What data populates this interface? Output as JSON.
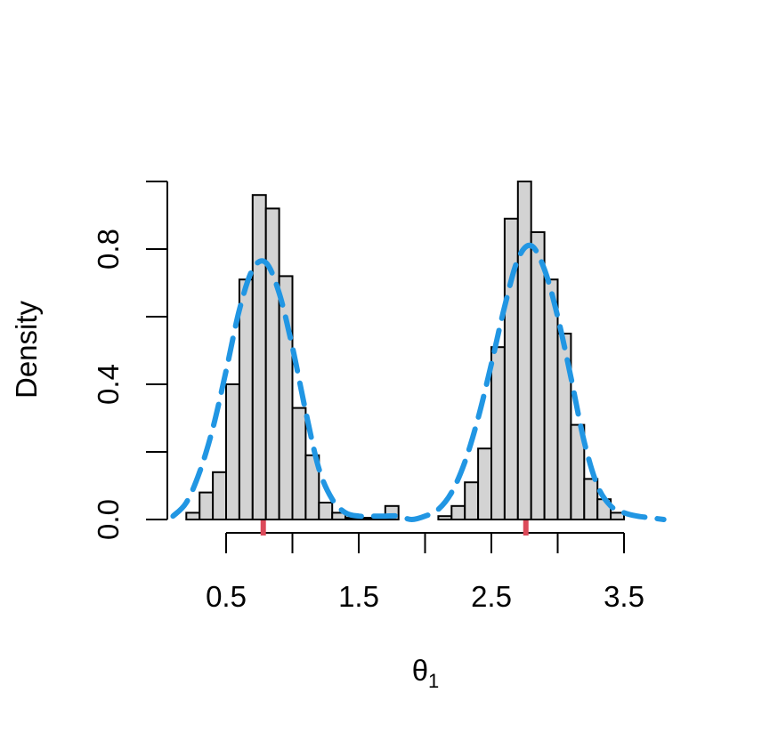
{
  "chart_data": {
    "type": "bar",
    "xlabel": "θ",
    "xlabel_subscript": "1",
    "ylabel": "Density",
    "xlim": [
      0.05,
      3.8
    ],
    "ylim": [
      0,
      1.0
    ],
    "x_ticks": [
      0.5,
      1.0,
      1.5,
      2.0,
      2.5,
      3.0,
      3.5
    ],
    "x_tick_labels": [
      {
        "value": 0.5,
        "label": "0.5"
      },
      {
        "value": 1.5,
        "label": "1.5"
      },
      {
        "value": 2.5,
        "label": "2.5"
      },
      {
        "value": 3.5,
        "label": "3.5"
      }
    ],
    "y_ticks": [
      0,
      0.2,
      0.4,
      0.6,
      0.8,
      1.0
    ],
    "y_tick_labels": [
      {
        "value": 0.0,
        "label": "0.0"
      },
      {
        "value": 0.4,
        "label": "0.4"
      },
      {
        "value": 0.8,
        "label": "0.8"
      }
    ],
    "bin_width": 0.1,
    "bins": [
      {
        "x0": 0.2,
        "value": 0.02
      },
      {
        "x0": 0.3,
        "value": 0.08
      },
      {
        "x0": 0.4,
        "value": 0.14
      },
      {
        "x0": 0.5,
        "value": 0.4
      },
      {
        "x0": 0.6,
        "value": 0.71
      },
      {
        "x0": 0.7,
        "value": 0.96
      },
      {
        "x0": 0.8,
        "value": 0.92
      },
      {
        "x0": 0.9,
        "value": 0.72
      },
      {
        "x0": 1.0,
        "value": 0.33
      },
      {
        "x0": 1.1,
        "value": 0.19
      },
      {
        "x0": 1.2,
        "value": 0.05
      },
      {
        "x0": 1.3,
        "value": 0.02
      },
      {
        "x0": 1.4,
        "value": 0.005
      },
      {
        "x0": 1.5,
        "value": 0.005
      },
      {
        "x0": 1.6,
        "value": 0.005
      },
      {
        "x0": 1.7,
        "value": 0.04
      },
      {
        "x0": 2.1,
        "value": 0.01
      },
      {
        "x0": 2.2,
        "value": 0.04
      },
      {
        "x0": 2.3,
        "value": 0.11
      },
      {
        "x0": 2.4,
        "value": 0.21
      },
      {
        "x0": 2.5,
        "value": 0.51
      },
      {
        "x0": 2.6,
        "value": 0.89
      },
      {
        "x0": 2.7,
        "value": 1.0
      },
      {
        "x0": 2.8,
        "value": 0.85
      },
      {
        "x0": 2.9,
        "value": 0.71
      },
      {
        "x0": 3.0,
        "value": 0.55
      },
      {
        "x0": 3.1,
        "value": 0.28
      },
      {
        "x0": 3.2,
        "value": 0.12
      },
      {
        "x0": 3.3,
        "value": 0.06
      },
      {
        "x0": 3.4,
        "value": 0.02
      }
    ],
    "density_curve": {
      "style": "dashed",
      "color": "#2196e3",
      "x": [
        0.1,
        0.2,
        0.3,
        0.4,
        0.5,
        0.6,
        0.7,
        0.8,
        0.9,
        1.0,
        1.1,
        1.2,
        1.3,
        1.4,
        1.5,
        1.6,
        1.7,
        1.8,
        1.9,
        2.0,
        2.1,
        2.2,
        2.3,
        2.4,
        2.5,
        2.6,
        2.7,
        2.8,
        2.9,
        3.0,
        3.1,
        3.2,
        3.3,
        3.4,
        3.5,
        3.6,
        3.7,
        3.8
      ],
      "y": [
        0.01,
        0.05,
        0.14,
        0.27,
        0.44,
        0.62,
        0.74,
        0.76,
        0.67,
        0.51,
        0.32,
        0.15,
        0.06,
        0.02,
        0.01,
        0.01,
        0.01,
        0.01,
        0.0,
        0.01,
        0.03,
        0.08,
        0.17,
        0.3,
        0.46,
        0.63,
        0.77,
        0.81,
        0.74,
        0.6,
        0.42,
        0.23,
        0.1,
        0.04,
        0.02,
        0.01,
        0.005,
        0.0
      ]
    },
    "rug_marks": {
      "color": "#dc4a5a",
      "x": [
        0.78,
        2.76
      ]
    },
    "colors": {
      "bar_fill": "#d3d3d3",
      "bar_stroke": "#000000",
      "axis": "#000000"
    },
    "grid": false,
    "legend": "none"
  }
}
